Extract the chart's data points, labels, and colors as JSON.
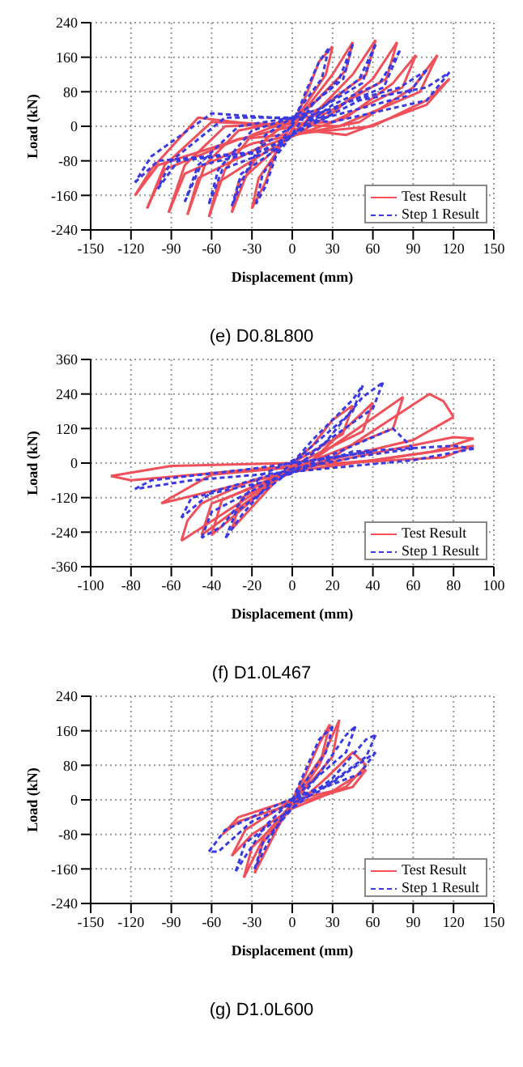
{
  "chart_data": [
    {
      "type": "line",
      "title": "(e) D0.8L800",
      "xlabel": "Displacement (mm)",
      "ylabel": "Load (kN)",
      "xlim": [
        -150,
        150
      ],
      "xticks": [
        -150,
        -120,
        -90,
        -60,
        -30,
        0,
        30,
        60,
        90,
        120,
        150
      ],
      "ylim": [
        -240,
        240
      ],
      "yticks": [
        -240,
        -160,
        -80,
        0,
        80,
        160,
        240
      ],
      "grid": true,
      "legend": "bottom right",
      "marker": "none",
      "series": [
        {
          "name": "Test Result",
          "color": "#f0505a",
          "line_style": "solid",
          "x": [
            0,
            10,
            20,
            30
          ],
          "values": [
            0,
            70,
            150,
            185
          ]
        },
        {
          "color": "#f0505a",
          "line_style": "solid",
          "x": [
            30,
            25,
            10,
            -10,
            -20,
            -30
          ],
          "values": [
            185,
            120,
            50,
            -40,
            -130,
            -190
          ]
        },
        {
          "color": "#f0505a",
          "line_style": "solid",
          "x": [
            -30,
            -25,
            -5,
            10,
            30,
            45
          ],
          "values": [
            -190,
            -120,
            -30,
            40,
            120,
            195
          ]
        },
        {
          "color": "#f0505a",
          "line_style": "solid",
          "x": [
            45,
            40,
            15,
            -20,
            -35,
            -45
          ],
          "values": [
            195,
            130,
            50,
            -30,
            -120,
            -200
          ]
        },
        {
          "color": "#f0505a",
          "line_style": "solid",
          "x": [
            -45,
            -40,
            -15,
            20,
            45,
            62
          ],
          "values": [
            -200,
            -130,
            -60,
            40,
            120,
            200
          ]
        },
        {
          "color": "#f0505a",
          "line_style": "solid",
          "x": [
            62,
            55,
            20,
            -30,
            -50,
            -62
          ],
          "values": [
            200,
            120,
            40,
            -20,
            -100,
            -210
          ]
        },
        {
          "color": "#f0505a",
          "line_style": "solid",
          "x": [
            -62,
            -55,
            -20,
            30,
            60,
            78
          ],
          "values": [
            -210,
            -130,
            -60,
            30,
            110,
            195
          ]
        },
        {
          "color": "#f0505a",
          "line_style": "solid",
          "x": [
            78,
            70,
            25,
            -40,
            -65,
            -78
          ],
          "values": [
            195,
            110,
            30,
            -10,
            -90,
            -205
          ]
        },
        {
          "color": "#f0505a",
          "line_style": "solid",
          "x": [
            -78,
            -70,
            -25,
            40,
            75,
            92
          ],
          "values": [
            -205,
            -120,
            -50,
            20,
            100,
            165
          ]
        },
        {
          "color": "#f0505a",
          "line_style": "solid",
          "x": [
            92,
            82,
            30,
            -50,
            -80,
            -92
          ],
          "values": [
            165,
            90,
            10,
            0,
            -90,
            -200
          ]
        },
        {
          "color": "#f0505a",
          "line_style": "solid",
          "x": [
            -92,
            -80,
            -30,
            50,
            90,
            108
          ],
          "values": [
            -200,
            -110,
            -40,
            10,
            90,
            165
          ]
        },
        {
          "color": "#f0505a",
          "line_style": "solid",
          "x": [
            108,
            95,
            35,
            -60,
            -95,
            -108
          ],
          "values": [
            165,
            80,
            0,
            10,
            -90,
            -190
          ]
        },
        {
          "color": "#f0505a",
          "line_style": "solid",
          "x": [
            -108,
            -95,
            -40,
            60,
            100,
            117
          ],
          "values": [
            -190,
            -100,
            -30,
            0,
            60,
            110
          ]
        },
        {
          "color": "#f0505a",
          "line_style": "solid",
          "x": [
            117,
            100,
            40,
            -70,
            -105,
            -117
          ],
          "values": [
            110,
            50,
            -20,
            20,
            -100,
            -160
          ]
        },
        {
          "color": "#f0505a",
          "line_style": "solid",
          "x": [
            -117,
            -100,
            -40,
            0
          ],
          "values": [
            -160,
            -90,
            -30,
            0
          ]
        },
        {
          "name": "Step 1 Result",
          "color": "#3a3ae0",
          "line_style": "dotted",
          "x": [
            0,
            10,
            20,
            27
          ],
          "values": [
            0,
            80,
            150,
            180
          ]
        },
        {
          "color": "#3a3ae0",
          "line_style": "dotted",
          "x": [
            27,
            22,
            5,
            -10,
            -20,
            -27
          ],
          "values": [
            180,
            110,
            40,
            -50,
            -140,
            -180
          ]
        },
        {
          "color": "#3a3ae0",
          "line_style": "dotted",
          "x": [
            -27,
            -22,
            -5,
            15,
            35,
            45
          ],
          "values": [
            -180,
            -110,
            -40,
            50,
            110,
            190
          ]
        },
        {
          "color": "#3a3ae0",
          "line_style": "dotted",
          "x": [
            45,
            38,
            10,
            -20,
            -35,
            -45
          ],
          "values": [
            190,
            110,
            40,
            -20,
            -110,
            -185
          ]
        },
        {
          "color": "#3a3ae0",
          "line_style": "dotted",
          "x": [
            -45,
            -38,
            -10,
            25,
            50,
            62
          ],
          "values": [
            -185,
            -110,
            -50,
            50,
            110,
            190
          ]
        },
        {
          "color": "#3a3ae0",
          "line_style": "dotted",
          "x": [
            62,
            52,
            20,
            -30,
            -55,
            -62
          ],
          "values": [
            190,
            100,
            40,
            -10,
            -100,
            -180
          ]
        },
        {
          "color": "#3a3ae0",
          "line_style": "dotted",
          "x": [
            -62,
            -52,
            -15,
            30,
            65,
            80
          ],
          "values": [
            -180,
            -100,
            -55,
            50,
            100,
            175
          ]
        },
        {
          "color": "#3a3ae0",
          "line_style": "dotted",
          "x": [
            80,
            68,
            20,
            -40,
            -70,
            -80
          ],
          "values": [
            175,
            90,
            30,
            0,
            -90,
            -175
          ]
        },
        {
          "color": "#3a3ae0",
          "line_style": "dotted",
          "x": [
            -80,
            -68,
            -20,
            40,
            80,
            100
          ],
          "values": [
            -175,
            -90,
            -55,
            55,
            90,
            130
          ]
        },
        {
          "color": "#3a3ae0",
          "line_style": "dotted",
          "x": [
            100,
            85,
            25,
            -50,
            -90,
            -100
          ],
          "values": [
            130,
            70,
            20,
            20,
            -80,
            -145
          ]
        },
        {
          "color": "#3a3ae0",
          "line_style": "dotted",
          "x": [
            -100,
            -85,
            -25,
            50,
            100,
            117
          ],
          "values": [
            -145,
            -80,
            -60,
            60,
            90,
            125
          ]
        },
        {
          "color": "#3a3ae0",
          "line_style": "dotted",
          "x": [
            117,
            100,
            30,
            -60,
            -105,
            -117
          ],
          "values": [
            125,
            60,
            10,
            30,
            -70,
            -130
          ]
        },
        {
          "color": "#3a3ae0",
          "line_style": "dotted",
          "x": [
            -117,
            -100,
            -30,
            0
          ],
          "values": [
            -130,
            -80,
            -60,
            0
          ]
        }
      ]
    },
    {
      "type": "line",
      "title": "(f) D1.0L467",
      "xlabel": "Displacement (mm)",
      "ylabel": "Load (kN)",
      "xlim": [
        -100,
        100
      ],
      "xticks": [
        -100,
        -80,
        -60,
        -40,
        -20,
        0,
        20,
        40,
        60,
        80,
        100
      ],
      "ylim": [
        -360,
        360
      ],
      "yticks": [
        -360,
        -240,
        -120,
        0,
        120,
        240,
        360
      ],
      "grid": true,
      "legend": "bottom right",
      "marker": "none",
      "series": [
        {
          "name": "Test Result",
          "color": "#f0505a",
          "line_style": "solid",
          "x": [
            0,
            10,
            20,
            30
          ],
          "values": [
            0,
            60,
            150,
            200
          ]
        },
        {
          "color": "#f0505a",
          "line_style": "solid",
          "x": [
            30,
            25,
            0,
            -30
          ],
          "values": [
            200,
            100,
            0,
            -230
          ]
        },
        {
          "color": "#f0505a",
          "line_style": "solid",
          "x": [
            -30,
            -25,
            10,
            40
          ],
          "values": [
            -230,
            -120,
            10,
            210
          ]
        },
        {
          "color": "#f0505a",
          "line_style": "solid",
          "x": [
            40,
            35,
            0,
            -40
          ],
          "values": [
            210,
            110,
            -10,
            -250
          ]
        },
        {
          "color": "#f0505a",
          "line_style": "solid",
          "x": [
            -40,
            -35,
            10,
            55
          ],
          "values": [
            -250,
            -130,
            10,
            230
          ]
        },
        {
          "color": "#f0505a",
          "line_style": "solid",
          "x": [
            55,
            50,
            0,
            -45
          ],
          "values": [
            230,
            120,
            -20,
            -250
          ]
        },
        {
          "color": "#f0505a",
          "line_style": "solid",
          "x": [
            -45,
            -40,
            20,
            68,
            75,
            80
          ],
          "values": [
            -250,
            -140,
            20,
            240,
            215,
            160
          ]
        },
        {
          "color": "#f0505a",
          "line_style": "solid",
          "x": [
            80,
            60,
            0,
            -55
          ],
          "values": [
            160,
            80,
            -20,
            -270
          ]
        },
        {
          "color": "#f0505a",
          "line_style": "solid",
          "x": [
            -55,
            -52,
            -45,
            -20,
            30,
            80,
            90
          ],
          "values": [
            -270,
            -200,
            -140,
            -60,
            20,
            90,
            85
          ]
        },
        {
          "color": "#f0505a",
          "line_style": "solid",
          "x": [
            90,
            70,
            0,
            -65
          ],
          "values": [
            85,
            40,
            -30,
            -140
          ]
        },
        {
          "color": "#f0505a",
          "line_style": "solid",
          "x": [
            -65,
            -40,
            40,
            90
          ],
          "values": [
            -140,
            -40,
            10,
            60
          ]
        },
        {
          "color": "#f0505a",
          "line_style": "solid",
          "x": [
            90,
            75,
            0,
            -80,
            -90
          ],
          "values": [
            60,
            20,
            -10,
            -60,
            -45
          ]
        },
        {
          "color": "#f0505a",
          "line_style": "solid",
          "x": [
            -90,
            -60,
            0
          ],
          "values": [
            -45,
            -10,
            0
          ]
        },
        {
          "name": "Step 1 Result",
          "color": "#3a3ae0",
          "line_style": "dotted",
          "x": [
            0,
            10,
            20,
            30,
            35
          ],
          "values": [
            0,
            80,
            150,
            220,
            270
          ]
        },
        {
          "color": "#3a3ae0",
          "line_style": "dotted",
          "x": [
            35,
            30,
            10,
            -10,
            -25,
            -33
          ],
          "values": [
            270,
            180,
            60,
            -60,
            -180,
            -260
          ]
        },
        {
          "color": "#3a3ae0",
          "line_style": "dotted",
          "x": [
            -33,
            -28,
            -5,
            15,
            35,
            45
          ],
          "values": [
            -260,
            -170,
            -50,
            60,
            230,
            280
          ]
        },
        {
          "color": "#3a3ae0",
          "line_style": "dotted",
          "x": [
            45,
            40,
            10,
            -15,
            -35,
            -45
          ],
          "values": [
            280,
            190,
            40,
            -40,
            -220,
            -260
          ]
        },
        {
          "color": "#3a3ae0",
          "line_style": "dotted",
          "x": [
            -45,
            -40,
            -10,
            20,
            50,
            60
          ],
          "values": [
            -260,
            -170,
            -60,
            30,
            120,
            50
          ]
        },
        {
          "color": "#3a3ae0",
          "line_style": "dotted",
          "x": [
            60,
            40,
            0,
            -40,
            -55
          ],
          "values": [
            50,
            30,
            -20,
            -100,
            -190
          ]
        },
        {
          "color": "#3a3ae0",
          "line_style": "dotted",
          "x": [
            -55,
            -50,
            -10,
            30,
            80,
            90
          ],
          "values": [
            -190,
            -120,
            -60,
            40,
            60,
            50
          ]
        },
        {
          "color": "#3a3ae0",
          "line_style": "dotted",
          "x": [
            90,
            60,
            0,
            -50,
            -78
          ],
          "values": [
            50,
            10,
            -30,
            -60,
            -90
          ]
        },
        {
          "color": "#3a3ae0",
          "line_style": "dotted",
          "x": [
            -78,
            -70,
            -20,
            40
          ],
          "values": [
            -90,
            -60,
            -20,
            40
          ]
        },
        {
          "color": "#3a3ae0",
          "line_style": "dotted",
          "x": [
            40,
            0
          ],
          "values": [
            40,
            0
          ]
        }
      ]
    },
    {
      "type": "line",
      "title": "(g) D1.0L600",
      "xlabel": "Displacement (mm)",
      "ylabel": "Load (kN)",
      "xlim": [
        -150,
        150
      ],
      "xticks": [
        -150,
        -120,
        -90,
        -60,
        -30,
        0,
        30,
        60,
        90,
        120,
        150
      ],
      "ylim": [
        -240,
        240
      ],
      "yticks": [
        -240,
        -160,
        -80,
        0,
        80,
        160,
        240
      ],
      "grid": true,
      "legend": "bottom right",
      "marker": "none",
      "series": [
        {
          "name": "Test Result",
          "color": "#f0505a",
          "line_style": "solid",
          "x": [
            0,
            10,
            20,
            28
          ],
          "values": [
            0,
            60,
            130,
            175
          ]
        },
        {
          "color": "#f0505a",
          "line_style": "solid",
          "x": [
            28,
            22,
            0,
            -15,
            -28
          ],
          "values": [
            175,
            100,
            0,
            -90,
            -170
          ]
        },
        {
          "color": "#f0505a",
          "line_style": "solid",
          "x": [
            -28,
            -22,
            0,
            20,
            35
          ],
          "values": [
            -170,
            -100,
            -10,
            80,
            185
          ]
        },
        {
          "color": "#f0505a",
          "line_style": "solid",
          "x": [
            35,
            30,
            5,
            -20,
            -36
          ],
          "values": [
            185,
            100,
            10,
            -80,
            -180
          ]
        },
        {
          "color": "#f0505a",
          "line_style": "solid",
          "x": [
            -36,
            -30,
            0,
            25,
            45,
            55
          ],
          "values": [
            -180,
            -110,
            -20,
            50,
            110,
            80
          ]
        },
        {
          "color": "#f0505a",
          "line_style": "solid",
          "x": [
            55,
            40,
            0,
            -30,
            -45
          ],
          "values": [
            80,
            30,
            -20,
            -80,
            -130
          ]
        },
        {
          "color": "#f0505a",
          "line_style": "solid",
          "x": [
            -45,
            -35,
            0,
            30,
            55
          ],
          "values": [
            -130,
            -70,
            0,
            20,
            70
          ]
        },
        {
          "color": "#f0505a",
          "line_style": "solid",
          "x": [
            55,
            45,
            0,
            -40,
            -52
          ],
          "values": [
            70,
            30,
            -10,
            -50,
            -80
          ]
        },
        {
          "color": "#f0505a",
          "line_style": "solid",
          "x": [
            -52,
            -40,
            0
          ],
          "values": [
            -80,
            -40,
            0
          ]
        },
        {
          "name": "Step 1 Result",
          "color": "#3a3ae0",
          "line_style": "dotted",
          "x": [
            0,
            10,
            20,
            30
          ],
          "values": [
            0,
            70,
            140,
            170
          ]
        },
        {
          "color": "#3a3ae0",
          "line_style": "dotted",
          "x": [
            30,
            25,
            5,
            -15,
            -28
          ],
          "values": [
            170,
            110,
            20,
            -80,
            -160
          ]
        },
        {
          "color": "#3a3ae0",
          "line_style": "dotted",
          "x": [
            -28,
            -22,
            0,
            20,
            40,
            47
          ],
          "values": [
            -160,
            -100,
            -20,
            60,
            150,
            170
          ]
        },
        {
          "color": "#3a3ae0",
          "line_style": "dotted",
          "x": [
            47,
            40,
            10,
            -20,
            -42
          ],
          "values": [
            170,
            110,
            30,
            -60,
            -165
          ]
        },
        {
          "color": "#3a3ae0",
          "line_style": "dotted",
          "x": [
            -42,
            -35,
            0,
            30,
            55,
            62
          ],
          "values": [
            -165,
            -100,
            -20,
            50,
            140,
            150
          ]
        },
        {
          "color": "#3a3ae0",
          "line_style": "dotted",
          "x": [
            62,
            55,
            20,
            -30,
            -55,
            -62
          ],
          "values": [
            150,
            100,
            20,
            -50,
            -120,
            -120
          ]
        },
        {
          "color": "#3a3ae0",
          "line_style": "dotted",
          "x": [
            -62,
            -50,
            -10,
            30,
            62
          ],
          "values": [
            -120,
            -70,
            -10,
            40,
            110
          ]
        },
        {
          "color": "#3a3ae0",
          "line_style": "dotted",
          "x": [
            62,
            50,
            0
          ],
          "values": [
            110,
            60,
            0
          ]
        }
      ]
    }
  ]
}
